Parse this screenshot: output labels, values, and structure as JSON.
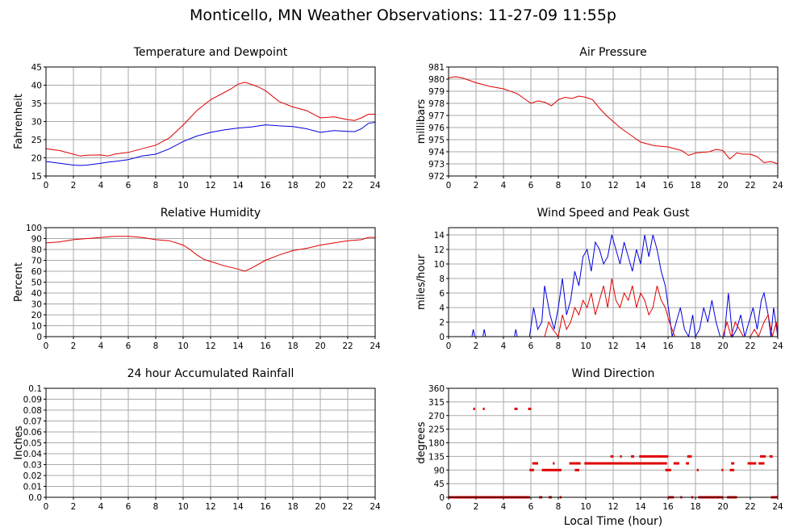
{
  "page": {
    "title": "Monticello, MN Weather Observations: 11-27-09 11:55p",
    "xlabel": "Local Time (hour)"
  },
  "colors": {
    "red": "#e00000",
    "blue": "#0000dd",
    "grid": "#aaaaaa"
  },
  "chart_data": [
    {
      "id": "temp",
      "type": "line",
      "title": "Temperature and Dewpoint",
      "xlabel": "",
      "ylabel": "Fahrenheit",
      "xlim": [
        0,
        24
      ],
      "ylim": [
        15,
        45
      ],
      "xticks": [
        0,
        2,
        4,
        6,
        8,
        10,
        12,
        14,
        16,
        18,
        20,
        22,
        24
      ],
      "yticks": [
        15,
        20,
        25,
        30,
        35,
        40,
        45
      ],
      "grid": true,
      "series": [
        {
          "color": "red",
          "x": [
            0,
            1,
            2,
            2.5,
            3,
            4,
            4.5,
            5,
            5.5,
            6,
            7,
            8,
            9,
            10,
            11,
            12,
            13,
            13.5,
            14,
            14.5,
            15,
            15.5,
            16,
            16.5,
            17,
            18,
            19,
            20,
            21,
            22,
            22.5,
            23,
            23.5,
            24
          ],
          "y": [
            22.5,
            22,
            21,
            20.5,
            20.7,
            20.8,
            20.5,
            21,
            21.3,
            21.5,
            22.5,
            23.5,
            25.5,
            29,
            33,
            36,
            38,
            39,
            40.3,
            40.8,
            40.2,
            39.5,
            38.5,
            37,
            35.5,
            34,
            33,
            31,
            31.3,
            30.5,
            30.3,
            31,
            32,
            32
          ]
        },
        {
          "color": "blue",
          "x": [
            0,
            1,
            2,
            2.5,
            3,
            4,
            4.5,
            5,
            6,
            7,
            8,
            9,
            10,
            11,
            12,
            13,
            14,
            15,
            16,
            17,
            18,
            19,
            20,
            21,
            22,
            22.5,
            23,
            23.5,
            24
          ],
          "y": [
            19,
            18.5,
            18,
            17.9,
            18,
            18.5,
            18.8,
            19,
            19.5,
            20.5,
            21,
            22.5,
            24.5,
            26,
            27,
            27.7,
            28.2,
            28.5,
            29.1,
            28.8,
            28.6,
            28,
            27,
            27.5,
            27.3,
            27.2,
            28,
            29.5,
            29.8
          ]
        }
      ]
    },
    {
      "id": "pressure",
      "type": "line",
      "title": "Air Pressure",
      "xlabel": "",
      "ylabel": "millibars",
      "xlim": [
        0,
        24
      ],
      "ylim": [
        972,
        981
      ],
      "xticks": [
        0,
        2,
        4,
        6,
        8,
        10,
        12,
        14,
        16,
        18,
        20,
        22,
        24
      ],
      "yticks": [
        972,
        973,
        974,
        975,
        976,
        977,
        978,
        979,
        980,
        981
      ],
      "grid": true,
      "series": [
        {
          "color": "red",
          "x": [
            0,
            0.5,
            1,
            1.5,
            2,
            3,
            4,
            5,
            5.5,
            6,
            6.5,
            7,
            7.5,
            8,
            8.5,
            9,
            9.5,
            10,
            10.5,
            11,
            11.5,
            12,
            12.5,
            13,
            13.5,
            14,
            15,
            16,
            17,
            17.5,
            18,
            19,
            19.5,
            20,
            20.5,
            21,
            21.5,
            22,
            22.5,
            23,
            23.5,
            24
          ],
          "y": [
            980.1,
            980.2,
            980.1,
            979.9,
            979.7,
            979.4,
            979.2,
            978.8,
            978.4,
            978.0,
            978.2,
            978.1,
            977.8,
            978.3,
            978.5,
            978.4,
            978.6,
            978.5,
            978.3,
            977.6,
            977.0,
            976.5,
            976.0,
            975.6,
            975.2,
            974.8,
            974.5,
            974.4,
            974.1,
            973.7,
            973.9,
            974.0,
            974.2,
            974.1,
            973.4,
            973.9,
            973.8,
            973.8,
            973.6,
            973.1,
            973.2,
            973.0
          ]
        }
      ]
    },
    {
      "id": "humidity",
      "type": "line",
      "title": "Relative Humidity",
      "xlabel": "",
      "ylabel": "Percent",
      "xlim": [
        0,
        24
      ],
      "ylim": [
        0,
        100
      ],
      "xticks": [
        0,
        2,
        4,
        6,
        8,
        10,
        12,
        14,
        16,
        18,
        20,
        22,
        24
      ],
      "yticks": [
        0,
        10,
        20,
        30,
        40,
        50,
        60,
        70,
        80,
        90,
        100
      ],
      "grid": true,
      "series": [
        {
          "color": "red",
          "x": [
            0,
            1,
            2,
            3,
            4,
            5,
            6,
            7,
            8,
            9,
            10,
            10.5,
            11,
            11.5,
            12,
            13,
            14,
            14.5,
            15,
            16,
            17,
            18,
            19,
            20,
            21,
            22,
            23,
            23.5,
            24
          ],
          "y": [
            86,
            87,
            89,
            90,
            91,
            92,
            92,
            91,
            89,
            88,
            84,
            80,
            75,
            71,
            69,
            65,
            62,
            60,
            63,
            70,
            75,
            79,
            81,
            84,
            86,
            88,
            89,
            91,
            91
          ]
        }
      ]
    },
    {
      "id": "wind",
      "type": "line",
      "title": "Wind Speed and Peak Gust",
      "xlabel": "",
      "ylabel": "miles/hour",
      "xlim": [
        0,
        24
      ],
      "ylim": [
        0,
        15
      ],
      "xticks": [
        0,
        2,
        4,
        6,
        8,
        10,
        12,
        14,
        16,
        18,
        20,
        22,
        24
      ],
      "yticks": [
        0,
        2,
        4,
        6,
        8,
        10,
        12,
        14
      ],
      "grid": true,
      "series": [
        {
          "color": "blue",
          "x": [
            0,
            1.7,
            1.8,
            1.9,
            2.5,
            2.6,
            2.7,
            4.8,
            4.9,
            5.0,
            5.9,
            6.2,
            6.5,
            6.8,
            7,
            7.4,
            7.7,
            8,
            8.3,
            8.6,
            8.9,
            9.2,
            9.5,
            9.8,
            10.1,
            10.4,
            10.7,
            11,
            11.3,
            11.6,
            11.9,
            12.2,
            12.5,
            12.8,
            13.1,
            13.4,
            13.7,
            14,
            14.3,
            14.6,
            14.9,
            15.2,
            15.5,
            15.8,
            16.1,
            16.3,
            16.6,
            16.9,
            17.2,
            17.5,
            17.8,
            18,
            18.3,
            18.6,
            18.9,
            19.2,
            19.5,
            19.8,
            20.1,
            20.4,
            20.7,
            21,
            21.3,
            21.6,
            21.9,
            22.2,
            22.5,
            22.8,
            23,
            23.3,
            23.5,
            23.7,
            24
          ],
          "y": [
            0,
            0,
            1,
            0,
            0,
            1,
            0,
            0,
            1,
            0,
            0,
            4,
            1,
            2,
            7,
            3,
            1,
            4,
            8,
            3,
            5,
            9,
            7,
            11,
            12,
            9,
            13,
            12,
            10,
            11,
            14,
            12,
            10,
            13,
            11,
            9,
            12,
            10,
            14,
            11,
            14,
            12,
            9,
            7,
            3,
            0,
            2,
            4,
            1,
            0,
            3,
            0,
            1,
            4,
            2,
            5,
            2,
            0,
            0,
            6,
            0,
            1,
            3,
            0,
            2,
            4,
            1,
            5,
            6,
            3,
            0,
            4,
            0
          ]
        },
        {
          "color": "red",
          "x": [
            0,
            6,
            7,
            7.3,
            7.6,
            8,
            8.3,
            8.6,
            8.9,
            9.2,
            9.5,
            9.8,
            10.1,
            10.4,
            10.7,
            11,
            11.3,
            11.6,
            11.9,
            12.2,
            12.5,
            12.8,
            13.1,
            13.4,
            13.7,
            14,
            14.3,
            14.6,
            14.9,
            15.2,
            15.5,
            15.8,
            16.1,
            16.3,
            16.5,
            17,
            18,
            19,
            20,
            20.3,
            20.6,
            20.9,
            21.2,
            21.5,
            22,
            22.3,
            22.6,
            23,
            23.3,
            23.6,
            23.9,
            24
          ],
          "y": [
            0,
            0,
            0,
            2,
            1,
            0,
            3,
            1,
            2,
            4,
            3,
            5,
            4,
            6,
            3,
            5,
            7,
            4,
            8,
            5,
            4,
            6,
            5,
            7,
            4,
            6,
            5,
            3,
            4,
            7,
            5,
            4,
            2,
            1,
            0,
            0,
            0,
            0,
            0,
            2,
            0,
            2,
            1,
            0,
            0,
            1,
            0,
            2,
            3,
            0,
            2,
            0
          ]
        }
      ]
    },
    {
      "id": "rain",
      "type": "line",
      "title": "24 hour Accumulated Rainfall",
      "xlabel": "",
      "ylabel": "Inches",
      "xlim": [
        0,
        24
      ],
      "ylim": [
        0,
        0.1
      ],
      "xticks": [
        0,
        2,
        4,
        6,
        8,
        10,
        12,
        14,
        16,
        18,
        20,
        22,
        24
      ],
      "yticks": [
        0.0,
        0.01,
        0.02,
        0.03,
        0.04,
        0.05,
        0.06,
        0.07,
        0.08,
        0.09,
        0.1
      ],
      "ytick_labels": [
        "0.0",
        "0.01",
        "0.02",
        "0.03",
        "0.04",
        "0.05",
        "0.06",
        "0.07",
        "0.08",
        "0.09",
        "0.1"
      ],
      "grid": true,
      "series": [
        {
          "color": "red",
          "x": [
            0,
            24
          ],
          "y": [
            0,
            0
          ]
        }
      ]
    },
    {
      "id": "direction",
      "type": "scatter",
      "title": "Wind Direction",
      "xlabel": "Local Time (hour)",
      "ylabel": "degrees",
      "xlim": [
        0,
        24
      ],
      "ylim": [
        0,
        360
      ],
      "xticks": [
        0,
        2,
        4,
        6,
        8,
        10,
        12,
        14,
        16,
        18,
        20,
        22,
        24
      ],
      "yticks": [
        0,
        45,
        90,
        135,
        180,
        225,
        270,
        315,
        360
      ],
      "grid": true,
      "series": [
        {
          "color": "red",
          "segments": [
            {
              "y": 0,
              "from": 0,
              "to": 5.9
            },
            {
              "y": 0,
              "from": 6.6,
              "to": 6.8
            },
            {
              "y": 0,
              "from": 7.3,
              "to": 7.5
            },
            {
              "y": 0,
              "from": 8.1,
              "to": 8.2
            },
            {
              "y": 0,
              "from": 16.0,
              "to": 16.4
            },
            {
              "y": 0,
              "from": 16.9,
              "to": 17.0
            },
            {
              "y": 0,
              "from": 17.7,
              "to": 17.8
            },
            {
              "y": 0,
              "from": 18.2,
              "to": 20.0
            },
            {
              "y": 0,
              "from": 20.3,
              "to": 21.0
            },
            {
              "y": 0,
              "from": 23.5,
              "to": 24.0
            },
            {
              "y": 90,
              "from": 5.9,
              "to": 6.2
            },
            {
              "y": 90,
              "from": 6.8,
              "to": 8.2
            },
            {
              "y": 90,
              "from": 9.2,
              "to": 9.5
            },
            {
              "y": 90,
              "from": 15.8,
              "to": 16.2
            },
            {
              "y": 90,
              "from": 18.1,
              "to": 18.2
            },
            {
              "y": 90,
              "from": 19.9,
              "to": 20.0
            },
            {
              "y": 90,
              "from": 20.5,
              "to": 20.8
            },
            {
              "y": 112,
              "from": 6.1,
              "to": 6.5
            },
            {
              "y": 112,
              "from": 7.6,
              "to": 7.7
            },
            {
              "y": 112,
              "from": 8.8,
              "to": 9.6
            },
            {
              "y": 112,
              "from": 9.9,
              "to": 15.9
            },
            {
              "y": 112,
              "from": 16.4,
              "to": 16.8
            },
            {
              "y": 112,
              "from": 17.3,
              "to": 17.5
            },
            {
              "y": 112,
              "from": 20.6,
              "to": 20.8
            },
            {
              "y": 112,
              "from": 21.8,
              "to": 22.4
            },
            {
              "y": 112,
              "from": 22.6,
              "to": 23.0
            },
            {
              "y": 135,
              "from": 11.8,
              "to": 12.0
            },
            {
              "y": 135,
              "from": 12.5,
              "to": 12.6
            },
            {
              "y": 135,
              "from": 13.3,
              "to": 13.5
            },
            {
              "y": 135,
              "from": 13.9,
              "to": 16.0
            },
            {
              "y": 135,
              "from": 17.4,
              "to": 17.7
            },
            {
              "y": 135,
              "from": 22.7,
              "to": 23.1
            },
            {
              "y": 135,
              "from": 23.4,
              "to": 23.6
            },
            {
              "y": 292,
              "from": 1.8,
              "to": 1.9
            },
            {
              "y": 292,
              "from": 2.5,
              "to": 2.6
            },
            {
              "y": 292,
              "from": 4.8,
              "to": 5.0
            },
            {
              "y": 292,
              "from": 5.8,
              "to": 6.0
            }
          ]
        }
      ]
    }
  ]
}
